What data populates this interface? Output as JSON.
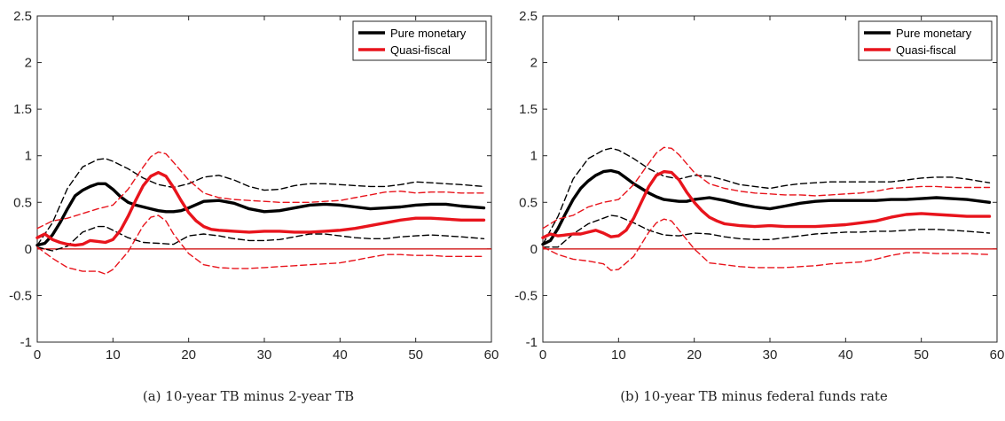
{
  "chart_data": [
    {
      "type": "line",
      "xlabel": "",
      "ylabel": "",
      "xlim": [
        0,
        60
      ],
      "ylim": [
        -1,
        2.5
      ],
      "xticks": [
        0,
        10,
        20,
        30,
        40,
        50,
        60
      ],
      "yticks": [
        -1,
        -0.5,
        0,
        0.5,
        1,
        1.5,
        2,
        2.5
      ],
      "xtick_labels": [
        "0",
        "10",
        "20",
        "30",
        "40",
        "50",
        "60"
      ],
      "ytick_labels": [
        "-1",
        "-0.5",
        "0",
        "0.5",
        "1",
        "1.5",
        "2",
        "2.5"
      ],
      "legend": {
        "position": "top-right",
        "entries": [
          "Pure monetary",
          "Quasi-fiscal"
        ]
      },
      "grid": false,
      "zero_line_color": "#cc0000",
      "caption": "(a) 10-year TB minus 2-year TB",
      "series": [
        {
          "name": "Pure monetary",
          "role": "point",
          "color": "#000000",
          "style": "solid",
          "x": [
            0,
            1,
            2,
            3,
            4,
            5,
            6,
            7,
            8,
            9,
            10,
            11,
            12,
            13,
            14,
            15,
            16,
            17,
            18,
            19,
            20,
            22,
            24,
            26,
            28,
            30,
            32,
            34,
            36,
            38,
            40,
            42,
            44,
            46,
            48,
            50,
            52,
            54,
            56,
            59
          ],
          "y": [
            0.04,
            0.06,
            0.15,
            0.28,
            0.43,
            0.57,
            0.63,
            0.67,
            0.7,
            0.7,
            0.64,
            0.56,
            0.5,
            0.47,
            0.45,
            0.43,
            0.41,
            0.4,
            0.4,
            0.41,
            0.44,
            0.51,
            0.52,
            0.49,
            0.43,
            0.4,
            0.41,
            0.44,
            0.47,
            0.48,
            0.47,
            0.45,
            0.43,
            0.44,
            0.45,
            0.47,
            0.48,
            0.48,
            0.46,
            0.44
          ]
        },
        {
          "name": "",
          "role": "upper-band",
          "color": "#000000",
          "style": "dashed",
          "x": [
            0,
            2,
            4,
            6,
            8,
            9,
            10,
            12,
            14,
            16,
            18,
            20,
            22,
            24,
            26,
            28,
            30,
            32,
            34,
            36,
            38,
            40,
            42,
            44,
            46,
            48,
            50,
            52,
            54,
            56,
            59
          ],
          "y": [
            0.04,
            0.28,
            0.65,
            0.88,
            0.96,
            0.97,
            0.94,
            0.86,
            0.76,
            0.69,
            0.66,
            0.7,
            0.77,
            0.79,
            0.74,
            0.67,
            0.63,
            0.64,
            0.68,
            0.7,
            0.7,
            0.69,
            0.68,
            0.67,
            0.67,
            0.69,
            0.72,
            0.71,
            0.7,
            0.69,
            0.67
          ]
        },
        {
          "name": "",
          "role": "lower-band",
          "color": "#000000",
          "style": "dashed",
          "x": [
            0,
            2,
            4,
            6,
            8,
            9,
            10,
            12,
            14,
            16,
            18,
            20,
            22,
            24,
            26,
            28,
            30,
            32,
            34,
            36,
            38,
            40,
            42,
            44,
            46,
            48,
            50,
            52,
            54,
            56,
            59
          ],
          "y": [
            0.02,
            -0.02,
            0.03,
            0.18,
            0.24,
            0.24,
            0.2,
            0.12,
            0.07,
            0.06,
            0.05,
            0.14,
            0.16,
            0.14,
            0.11,
            0.09,
            0.09,
            0.1,
            0.13,
            0.16,
            0.16,
            0.14,
            0.12,
            0.11,
            0.11,
            0.13,
            0.14,
            0.15,
            0.14,
            0.13,
            0.11
          ]
        },
        {
          "name": "Quasi-fiscal",
          "role": "point",
          "color": "#e8141c",
          "style": "solid",
          "x": [
            0,
            1,
            2,
            3,
            4,
            5,
            6,
            7,
            8,
            9,
            10,
            11,
            12,
            13,
            14,
            15,
            16,
            17,
            18,
            19,
            20,
            21,
            22,
            23,
            24,
            26,
            28,
            30,
            32,
            34,
            36,
            38,
            40,
            42,
            44,
            46,
            48,
            50,
            52,
            54,
            56,
            59
          ],
          "y": [
            0.12,
            0.16,
            0.1,
            0.07,
            0.05,
            0.04,
            0.05,
            0.09,
            0.08,
            0.07,
            0.1,
            0.2,
            0.35,
            0.52,
            0.68,
            0.78,
            0.82,
            0.78,
            0.66,
            0.52,
            0.39,
            0.3,
            0.24,
            0.21,
            0.2,
            0.19,
            0.18,
            0.19,
            0.19,
            0.18,
            0.18,
            0.19,
            0.2,
            0.22,
            0.25,
            0.28,
            0.31,
            0.33,
            0.33,
            0.32,
            0.31,
            0.31
          ]
        },
        {
          "name": "",
          "role": "upper-band",
          "color": "#e8141c",
          "style": "dashed",
          "x": [
            0,
            2,
            4,
            6,
            8,
            10,
            12,
            14,
            15,
            16,
            17,
            18,
            20,
            22,
            24,
            26,
            28,
            30,
            32,
            34,
            36,
            38,
            40,
            42,
            44,
            46,
            48,
            50,
            52,
            54,
            56,
            59
          ],
          "y": [
            0.22,
            0.3,
            0.33,
            0.38,
            0.43,
            0.47,
            0.64,
            0.88,
            0.99,
            1.04,
            1.02,
            0.93,
            0.74,
            0.6,
            0.55,
            0.53,
            0.52,
            0.51,
            0.5,
            0.5,
            0.5,
            0.51,
            0.52,
            0.55,
            0.58,
            0.61,
            0.62,
            0.6,
            0.61,
            0.61,
            0.6,
            0.6
          ]
        },
        {
          "name": "",
          "role": "lower-band",
          "color": "#e8141c",
          "style": "dashed",
          "x": [
            0,
            2,
            4,
            6,
            8,
            9,
            10,
            12,
            14,
            15,
            16,
            17,
            18,
            20,
            22,
            24,
            26,
            28,
            30,
            32,
            34,
            36,
            38,
            40,
            42,
            44,
            46,
            48,
            50,
            52,
            54,
            56,
            59
          ],
          "y": [
            0.02,
            -0.1,
            -0.2,
            -0.24,
            -0.24,
            -0.27,
            -0.22,
            -0.03,
            0.25,
            0.34,
            0.36,
            0.3,
            0.16,
            -0.05,
            -0.17,
            -0.2,
            -0.21,
            -0.21,
            -0.2,
            -0.19,
            -0.18,
            -0.17,
            -0.16,
            -0.15,
            -0.12,
            -0.09,
            -0.06,
            -0.06,
            -0.07,
            -0.07,
            -0.08,
            -0.08,
            -0.08
          ]
        }
      ]
    },
    {
      "type": "line",
      "xlabel": "",
      "ylabel": "",
      "xlim": [
        0,
        60
      ],
      "ylim": [
        -1,
        2.5
      ],
      "xticks": [
        0,
        10,
        20,
        30,
        40,
        50,
        60
      ],
      "yticks": [
        -1,
        -0.5,
        0,
        0.5,
        1,
        1.5,
        2,
        2.5
      ],
      "xtick_labels": [
        "0",
        "10",
        "20",
        "30",
        "40",
        "50",
        "60"
      ],
      "ytick_labels": [
        "-1",
        "-0.5",
        "0",
        "0.5",
        "1",
        "1.5",
        "2",
        "2.5"
      ],
      "legend": {
        "position": "top-right",
        "entries": [
          "Pure monetary",
          "Quasi-fiscal"
        ]
      },
      "grid": false,
      "zero_line_color": "#cc0000",
      "caption": "(b) 10-year TB minus federal funds rate",
      "series": [
        {
          "name": "Pure monetary",
          "role": "point",
          "color": "#000000",
          "style": "solid",
          "x": [
            0,
            1,
            2,
            3,
            4,
            5,
            6,
            7,
            8,
            9,
            10,
            11,
            12,
            13,
            14,
            15,
            16,
            17,
            18,
            19,
            20,
            22,
            24,
            26,
            28,
            30,
            32,
            34,
            36,
            38,
            40,
            42,
            44,
            46,
            48,
            50,
            52,
            54,
            56,
            59
          ],
          "y": [
            0.05,
            0.09,
            0.22,
            0.38,
            0.53,
            0.65,
            0.73,
            0.79,
            0.83,
            0.84,
            0.82,
            0.76,
            0.7,
            0.65,
            0.6,
            0.56,
            0.53,
            0.52,
            0.51,
            0.51,
            0.53,
            0.55,
            0.52,
            0.48,
            0.45,
            0.43,
            0.46,
            0.49,
            0.51,
            0.52,
            0.52,
            0.52,
            0.52,
            0.53,
            0.53,
            0.54,
            0.55,
            0.54,
            0.53,
            0.5
          ]
        },
        {
          "name": "",
          "role": "upper-band",
          "color": "#000000",
          "style": "dashed",
          "x": [
            0,
            2,
            4,
            6,
            8,
            9,
            10,
            12,
            14,
            16,
            18,
            20,
            22,
            24,
            26,
            28,
            30,
            32,
            34,
            36,
            38,
            40,
            42,
            44,
            46,
            48,
            50,
            52,
            54,
            56,
            59
          ],
          "y": [
            0.05,
            0.35,
            0.75,
            0.97,
            1.06,
            1.08,
            1.06,
            0.97,
            0.86,
            0.78,
            0.75,
            0.79,
            0.78,
            0.74,
            0.69,
            0.67,
            0.65,
            0.68,
            0.7,
            0.71,
            0.72,
            0.72,
            0.72,
            0.72,
            0.72,
            0.74,
            0.76,
            0.77,
            0.77,
            0.75,
            0.71
          ]
        },
        {
          "name": "",
          "role": "lower-band",
          "color": "#000000",
          "style": "dashed",
          "x": [
            0,
            2,
            4,
            6,
            8,
            9,
            10,
            12,
            14,
            16,
            18,
            20,
            22,
            24,
            26,
            28,
            30,
            32,
            34,
            36,
            38,
            40,
            42,
            44,
            46,
            48,
            50,
            52,
            54,
            56,
            59
          ],
          "y": [
            0.02,
            0.02,
            0.16,
            0.27,
            0.33,
            0.36,
            0.35,
            0.28,
            0.2,
            0.15,
            0.14,
            0.17,
            0.16,
            0.13,
            0.11,
            0.1,
            0.1,
            0.12,
            0.14,
            0.16,
            0.17,
            0.18,
            0.18,
            0.19,
            0.19,
            0.2,
            0.21,
            0.21,
            0.2,
            0.19,
            0.17
          ]
        },
        {
          "name": "Quasi-fiscal",
          "role": "point",
          "color": "#e8141c",
          "style": "solid",
          "x": [
            0,
            1,
            2,
            3,
            4,
            5,
            6,
            7,
            8,
            9,
            10,
            11,
            12,
            13,
            14,
            15,
            16,
            17,
            18,
            19,
            20,
            21,
            22,
            23,
            24,
            26,
            28,
            30,
            32,
            34,
            36,
            38,
            40,
            42,
            44,
            46,
            48,
            50,
            52,
            54,
            56,
            59
          ],
          "y": [
            0.12,
            0.16,
            0.14,
            0.15,
            0.16,
            0.16,
            0.18,
            0.2,
            0.17,
            0.13,
            0.14,
            0.2,
            0.33,
            0.5,
            0.67,
            0.79,
            0.83,
            0.82,
            0.74,
            0.61,
            0.5,
            0.41,
            0.34,
            0.3,
            0.27,
            0.25,
            0.24,
            0.25,
            0.24,
            0.24,
            0.24,
            0.25,
            0.26,
            0.28,
            0.3,
            0.34,
            0.37,
            0.38,
            0.37,
            0.36,
            0.35,
            0.35
          ]
        },
        {
          "name": "",
          "role": "upper-band",
          "color": "#e8141c",
          "style": "dashed",
          "x": [
            0,
            2,
            4,
            6,
            8,
            10,
            12,
            14,
            15,
            16,
            17,
            18,
            20,
            22,
            24,
            26,
            28,
            30,
            32,
            34,
            36,
            38,
            40,
            42,
            44,
            46,
            48,
            50,
            52,
            54,
            56,
            59
          ],
          "y": [
            0.22,
            0.32,
            0.36,
            0.45,
            0.5,
            0.53,
            0.69,
            0.92,
            1.03,
            1.09,
            1.08,
            1.01,
            0.82,
            0.7,
            0.65,
            0.62,
            0.6,
            0.59,
            0.58,
            0.58,
            0.57,
            0.58,
            0.59,
            0.6,
            0.62,
            0.65,
            0.66,
            0.67,
            0.67,
            0.66,
            0.66,
            0.66
          ]
        },
        {
          "name": "",
          "role": "lower-band",
          "color": "#e8141c",
          "style": "dashed",
          "x": [
            0,
            2,
            4,
            6,
            8,
            9,
            10,
            12,
            14,
            15,
            16,
            17,
            18,
            20,
            22,
            24,
            26,
            28,
            30,
            32,
            34,
            36,
            38,
            40,
            42,
            44,
            46,
            48,
            50,
            52,
            54,
            56,
            59
          ],
          "y": [
            0.02,
            -0.06,
            -0.11,
            -0.13,
            -0.16,
            -0.23,
            -0.22,
            -0.08,
            0.18,
            0.28,
            0.32,
            0.3,
            0.2,
            0.0,
            -0.15,
            -0.17,
            -0.19,
            -0.2,
            -0.2,
            -0.2,
            -0.19,
            -0.18,
            -0.16,
            -0.15,
            -0.14,
            -0.11,
            -0.07,
            -0.04,
            -0.04,
            -0.05,
            -0.05,
            -0.05,
            -0.06
          ]
        }
      ]
    }
  ]
}
